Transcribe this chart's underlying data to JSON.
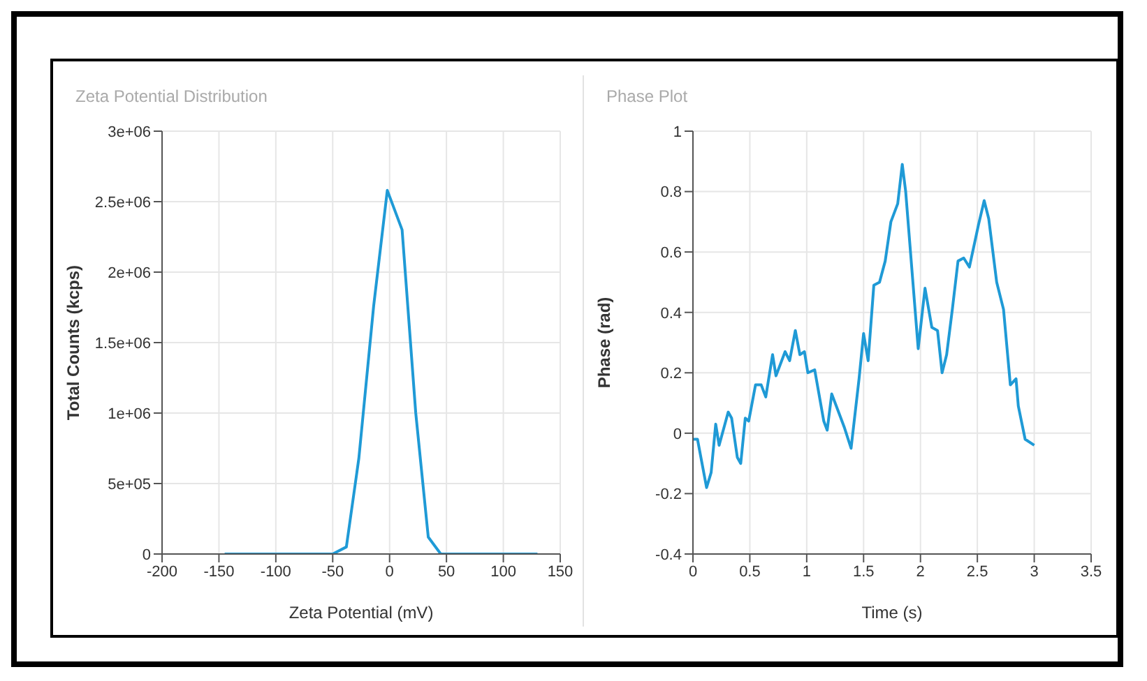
{
  "chart_data": [
    {
      "type": "line",
      "title": "Zeta Potential Distribution",
      "xlabel": "Zeta Potential (mV)",
      "ylabel": "Total Counts (kcps)",
      "xlim": [
        -200,
        150
      ],
      "xticks": [
        -200,
        -150,
        -100,
        -50,
        0,
        50,
        100,
        150
      ],
      "ylim": [
        0,
        3000000
      ],
      "yticks": [
        {
          "value": 0,
          "label": "0"
        },
        {
          "value": 500000,
          "label": "5e+05"
        },
        {
          "value": 1000000,
          "label": "1e+06"
        },
        {
          "value": 1500000,
          "label": "1.5e+06"
        },
        {
          "value": 2000000,
          "label": "2e+06"
        },
        {
          "value": 2500000,
          "label": "2.5e+06"
        },
        {
          "value": 3000000,
          "label": "3e+06"
        }
      ],
      "grid": true,
      "legend": false,
      "marker": "none",
      "series": [
        {
          "color": "#1f9ad6",
          "x": [
            -145,
            -50,
            -38,
            -27,
            -14,
            -2,
            11,
            23,
            34,
            45,
            130
          ],
          "values": [
            0,
            0,
            50000,
            680000,
            1760000,
            2580000,
            2300000,
            1000000,
            120000,
            0,
            0
          ]
        }
      ]
    },
    {
      "type": "line",
      "title": "Phase Plot",
      "xlabel": "Time (s)",
      "ylabel": "Phase (rad)",
      "xlim": [
        0,
        3.5
      ],
      "xticks": [
        0,
        0.5,
        1,
        1.5,
        2,
        2.5,
        3,
        3.5
      ],
      "ylim": [
        -0.4,
        1
      ],
      "yticks": [
        -0.4,
        -0.2,
        0,
        0.2,
        0.4,
        0.6,
        0.8,
        1
      ],
      "grid": true,
      "legend": false,
      "marker": "none",
      "series": [
        {
          "color": "#1f9ad6",
          "x": [
            0,
            0.04,
            0.12,
            0.16,
            0.2,
            0.23,
            0.31,
            0.34,
            0.39,
            0.42,
            0.46,
            0.49,
            0.55,
            0.6,
            0.64,
            0.7,
            0.73,
            0.81,
            0.85,
            0.9,
            0.94,
            0.98,
            1.01,
            1.07,
            1.15,
            1.18,
            1.22,
            1.28,
            1.33,
            1.39,
            1.46,
            1.5,
            1.54,
            1.59,
            1.64,
            1.69,
            1.74,
            1.8,
            1.84,
            1.87,
            1.98,
            2.04,
            2.1,
            2.15,
            2.19,
            2.23,
            2.28,
            2.33,
            2.38,
            2.43,
            2.51,
            2.56,
            2.6,
            2.67,
            2.73,
            2.79,
            2.84,
            2.86,
            2.92,
            3.0
          ],
          "values": [
            -0.02,
            -0.02,
            -0.18,
            -0.13,
            0.03,
            -0.04,
            0.07,
            0.05,
            -0.08,
            -0.1,
            0.05,
            0.04,
            0.16,
            0.16,
            0.12,
            0.26,
            0.19,
            0.27,
            0.24,
            0.34,
            0.26,
            0.27,
            0.2,
            0.21,
            0.04,
            0.01,
            0.13,
            0.07,
            0.02,
            -0.05,
            0.18,
            0.33,
            0.24,
            0.49,
            0.5,
            0.57,
            0.7,
            0.76,
            0.89,
            0.8,
            0.28,
            0.48,
            0.35,
            0.34,
            0.2,
            0.26,
            0.41,
            0.57,
            0.58,
            0.55,
            0.69,
            0.77,
            0.71,
            0.5,
            0.41,
            0.16,
            0.18,
            0.09,
            -0.02,
            -0.04
          ]
        }
      ]
    }
  ]
}
